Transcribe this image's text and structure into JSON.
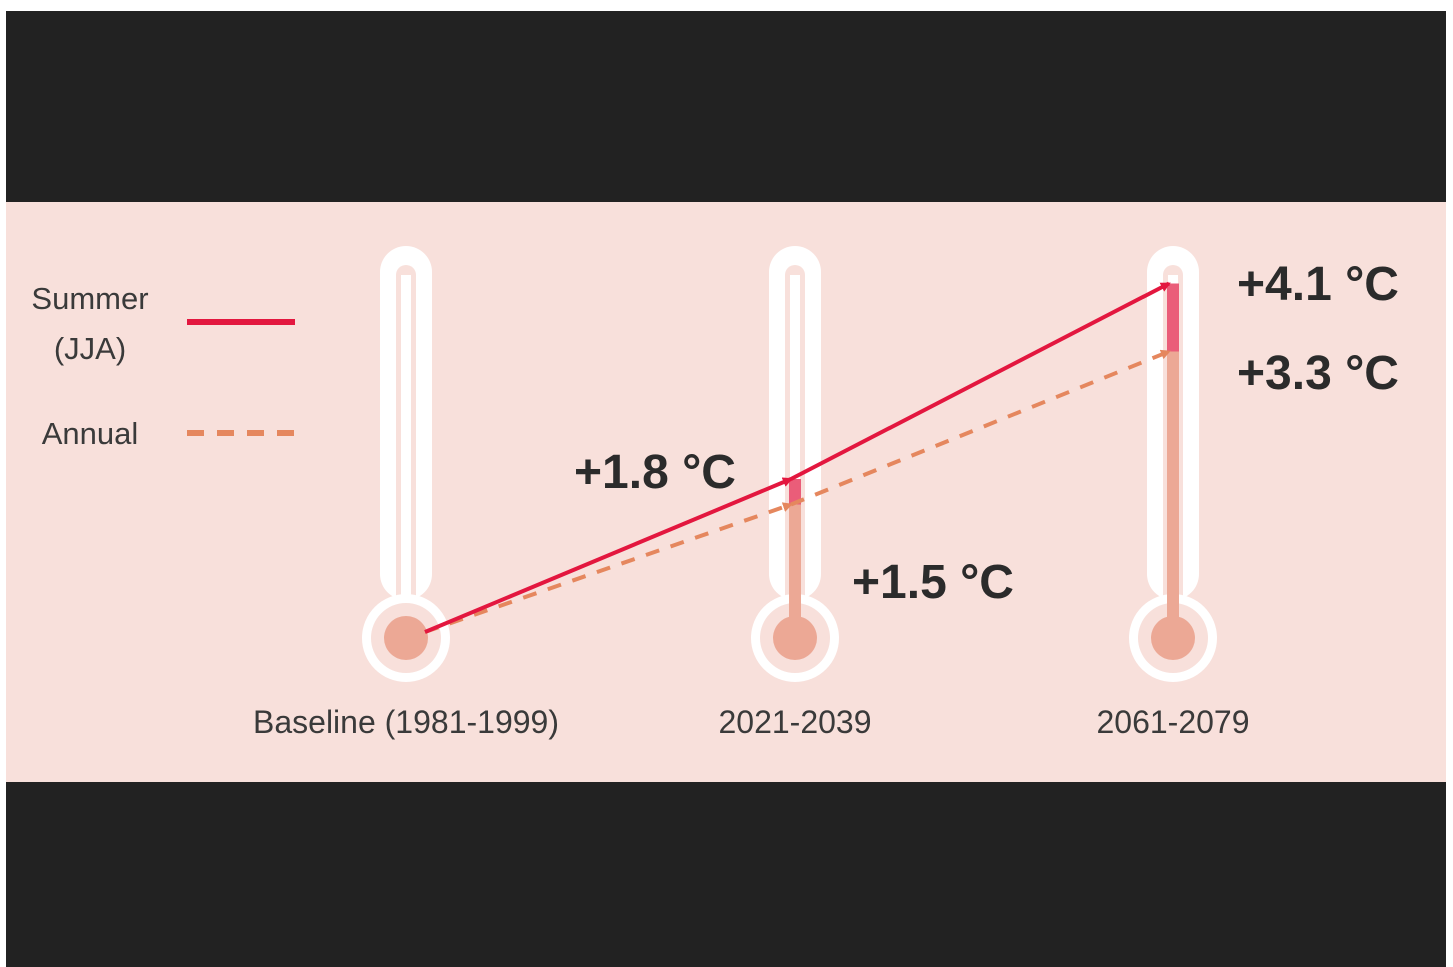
{
  "chart_data": {
    "type": "line",
    "categories": [
      "Baseline (1981-1999)",
      "2021-2039",
      "2061-2079"
    ],
    "unit": "°C",
    "series": [
      {
        "name": "Summer (JJA)",
        "name_lines": [
          "Summer",
          "(JJA)"
        ],
        "values": [
          0,
          1.8,
          4.1
        ],
        "labels": [
          "",
          "+1.8 °C",
          "+4.1 °C"
        ],
        "color": "#e3173f",
        "style": "solid"
      },
      {
        "name": "Annual",
        "name_lines": [
          "Annual"
        ],
        "values": [
          0,
          1.5,
          3.3
        ],
        "labels": [
          "",
          "+1.5 °C",
          "+3.3 °C"
        ],
        "color": "#e5875e",
        "style": "dashed"
      }
    ],
    "legend_position": "left",
    "grid": false
  },
  "colors": {
    "background": "#f8e0db",
    "frame": "#222222",
    "thermometer_outline": "#ffffff",
    "thermometer_fill": "#eca895",
    "summer_bar": "#ea5d79"
  }
}
